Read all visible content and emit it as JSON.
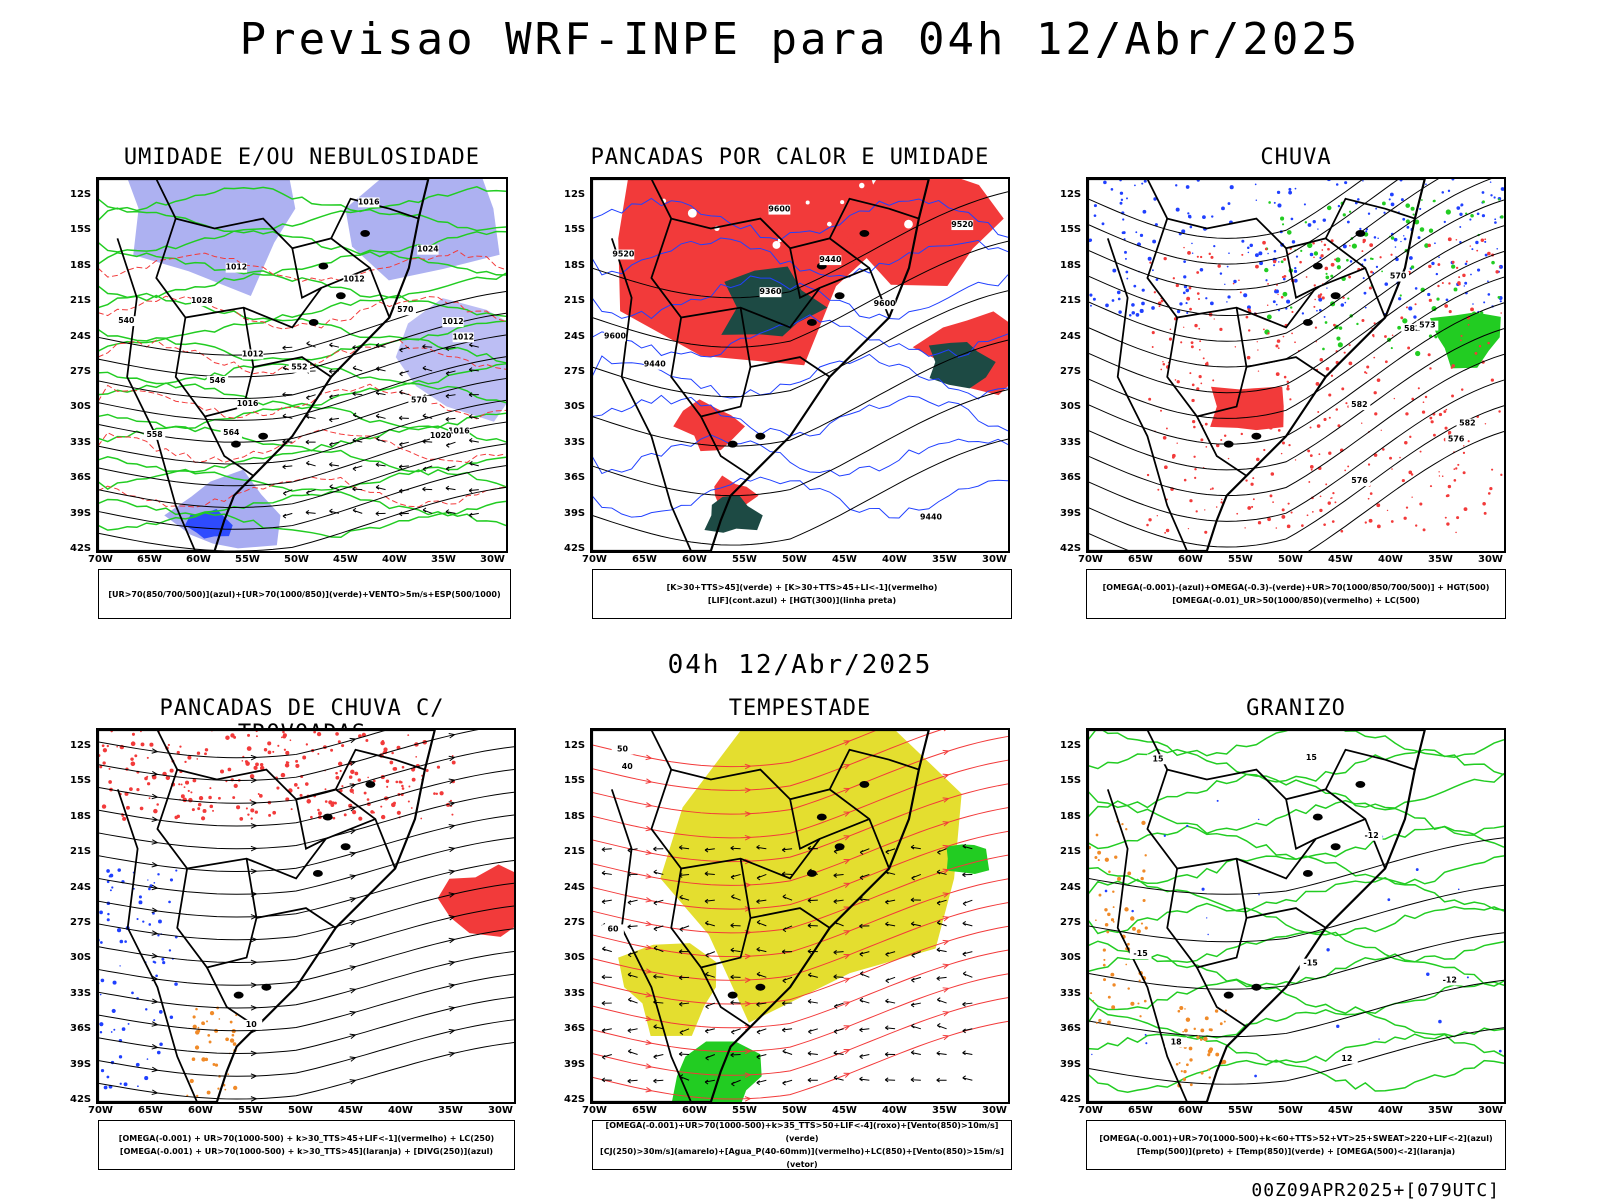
{
  "main_title": "Previsao WRF-INPE  para 04h 12/Abr/2025",
  "mid_date": "04h 12/Abr/2025",
  "run_stamp": "00Z09APR2025+[079UTC]",
  "lat_labels": [
    "12S",
    "15S",
    "18S",
    "21S",
    "24S",
    "27S",
    "30S",
    "33S",
    "36S",
    "39S",
    "42S"
  ],
  "lon_labels": [
    "70W",
    "65W",
    "60W",
    "55W",
    "50W",
    "45W",
    "40W",
    "35W",
    "30W"
  ],
  "panels": [
    {
      "title": "UMIDADE E/OU NEBULOSIDADE",
      "legend": [
        "[UR>70(850/700/500)](azul)+[UR>70(1000/850)](verde)+VENTO>5m/s+ESP(500/1000)"
      ],
      "contour_labels": [
        "1012",
        "1012",
        "1012",
        "1012",
        "1012",
        "1016",
        "1016",
        "1016",
        "1020",
        "1024",
        "1028",
        "570",
        "570",
        "564",
        "558",
        "552",
        "546",
        "540"
      ]
    },
    {
      "title": "PANCADAS POR CALOR E UMIDADE",
      "legend": [
        "[K>30+TTS>45](verde)  +  [K>30+TTS>45+LI<-1](vermelho)",
        "[LIF](cont.azul)  +  [HGT(300)](linha preta)"
      ],
      "contour_labels": [
        "9600",
        "9600",
        "9600",
        "9520",
        "9520",
        "9440",
        "9440",
        "9440",
        "9360"
      ]
    },
    {
      "title": "CHUVA",
      "legend": [
        "[OMEGA(-0.001)-(azul)+OMEGA(-0.3)-(verde)+UR>70(1000/850/700/500)] + HGT(500)",
        "[OMEGA(-0.01)_UR>50(1000/850)(vermelho) + LC(500)"
      ],
      "contour_labels": [
        "582",
        "582",
        "582",
        "576",
        "576",
        "570",
        "573"
      ]
    },
    {
      "title": "PANCADAS DE CHUVA C/ TROVOADAS",
      "legend": [
        "[OMEGA(-0.001) + UR>70(1000-500) + k>30_TTS>45+LIF<-1](vermelho) + LC(250)",
        "[OMEGA(-0.001) + UR>70(1000-500) + k>30_TTS>45](laranja) + [DIVG(250)](azul)"
      ],
      "contour_labels": [
        "10"
      ]
    },
    {
      "title": "TEMPESTADE",
      "legend": [
        "[OMEGA(-0.001)+UR>70(1000-500)+k>35_TTS>50+LIF<-4](roxo)+[Vento(850)>10m/s](verde)",
        "[CJ(250)>30m/s](amarelo)+[Agua_P(40-60mm)](vermelho)+LC(850)+[Vento(850)>15m/s](vetor)"
      ],
      "contour_labels": [
        "40",
        "50",
        "60"
      ]
    },
    {
      "title": "GRANIZO",
      "legend": [
        "[OMEGA(-0.001)+UR>70(1000-500)+k<60+TTS>52+VT>25+SWEAT>220+LIF<-2](azul)",
        "[Temp(500)](preto) + [Temp(850)](verde) + [OMEGA(500)<-2](laranja)"
      ],
      "contour_labels": [
        "-12",
        "-15",
        "-15",
        "-12",
        "12",
        "15",
        "15",
        "18"
      ]
    }
  ],
  "colors": {
    "blue": "#2040ff",
    "lavender": "#9fa3ef",
    "green": "#22cc22",
    "red": "#f23a3a",
    "darkteal": "#1d4a44",
    "yellow": "#e3dc24",
    "orange": "#f08a28",
    "purple": "#9a1fd0"
  }
}
